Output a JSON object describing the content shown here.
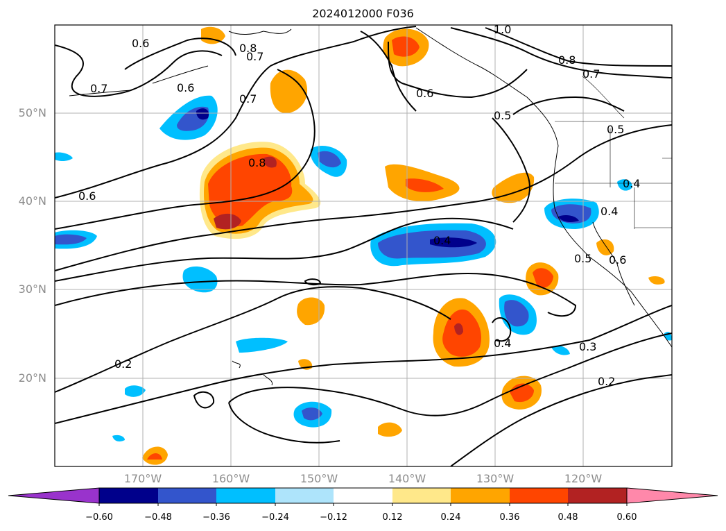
{
  "title": "2024012000 F036",
  "lat_labels": [
    "50°N",
    "40°N",
    "30°N",
    "20°N"
  ],
  "lon_labels": [
    "170°W",
    "160°W",
    "150°W",
    "140°W",
    "130°W",
    "120°W"
  ],
  "colorbar": {
    "ticks": [
      "−0.60",
      "−0.48",
      "−0.36",
      "−0.24",
      "−0.12",
      "0.12",
      "0.24",
      "0.36",
      "0.48",
      "0.60"
    ],
    "colors": [
      "#9933cc",
      "#00008b",
      "#3355cc",
      "#00bfff",
      "#aee4fb",
      "#ffffff",
      "#ffe88a",
      "#ffa500",
      "#ff4500",
      "#b22222",
      "#ff88aa"
    ]
  },
  "contour_labels": [
    "0.6",
    "0.8",
    "0.7",
    "0.6",
    "0.7",
    "0.7",
    "1.0",
    "0.8",
    "0.7",
    "0.6",
    "0.5",
    "0.5",
    "0.8",
    "0.6",
    "0.4",
    "0.4",
    "0.4",
    "0.5",
    "0.6",
    "0.4",
    "0.3",
    "0.2",
    "0.2"
  ]
}
